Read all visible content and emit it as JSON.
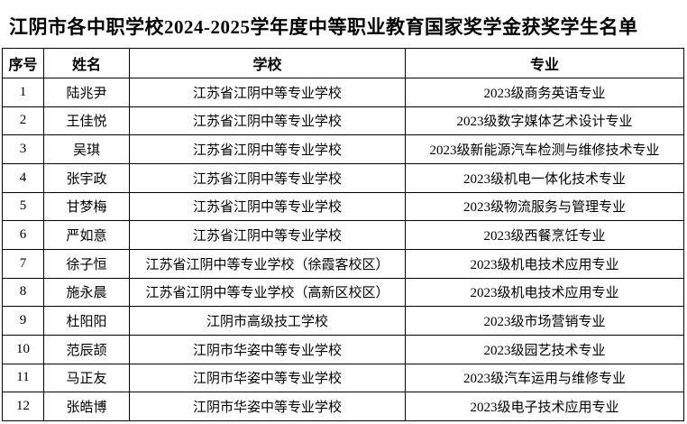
{
  "title": "江阴市各中职学校2024-2025学年度中等职业教育国家奖学金获奖学生名单",
  "colors": {
    "text": "#000000",
    "border": "#000000",
    "background": "#ffffff"
  },
  "table": {
    "headers": [
      "序号",
      "姓名",
      "学校",
      "专业"
    ],
    "rows": [
      [
        "1",
        "陆兆尹",
        "江苏省江阴中等专业学校",
        "2023级商务英语专业"
      ],
      [
        "2",
        "王佳悦",
        "江苏省江阴中等专业学校",
        "2023级数字媒体艺术设计专业"
      ],
      [
        "3",
        "吴琪",
        "江苏省江阴中等专业学校",
        "2023级新能源汽车检测与维修技术专业"
      ],
      [
        "4",
        "张宇政",
        "江苏省江阴中等专业学校",
        "2023级机电一体化技术专业"
      ],
      [
        "5",
        "甘梦梅",
        "江苏省江阴中等专业学校",
        "2023级物流服务与管理专业"
      ],
      [
        "6",
        "严如意",
        "江苏省江阴中等专业学校",
        "2023级西餐烹饪专业"
      ],
      [
        "7",
        "徐子恒",
        "江苏省江阴中等专业学校（徐霞客校区）",
        "2023级机电技术应用专业"
      ],
      [
        "8",
        "施永晨",
        "江苏省江阴中等专业学校（高新区校区）",
        "2023级机电技术应用专业"
      ],
      [
        "9",
        "杜阳阳",
        "江阴市高级技工学校",
        "2023级市场营销专业"
      ],
      [
        "10",
        "范辰颉",
        "江阴市华姿中等专业学校",
        "2023级园艺技术专业"
      ],
      [
        "11",
        "马正友",
        "江阴市华姿中等专业学校",
        "2023级汽车运用与维修专业"
      ],
      [
        "12",
        "张皓博",
        "江阴市华姿中等专业学校",
        "2023级电子技术应用专业"
      ]
    ]
  }
}
